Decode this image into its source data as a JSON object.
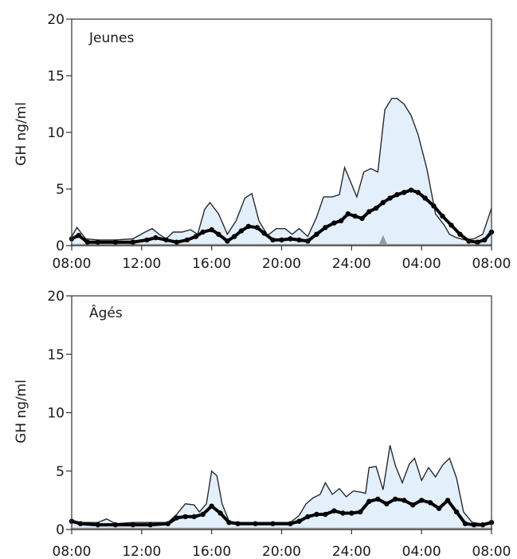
{
  "colors": {
    "band_fill": "#e3f0fb",
    "band_edge": "#2a2a2a",
    "mean_line": "#000000",
    "baseline_fill": "#9a9a9a",
    "axis": "#333333"
  },
  "chart_data": [
    {
      "type": "area",
      "panel_label": "Jeunes",
      "ylabel": "GH ng/ml",
      "ylim": [
        0,
        20
      ],
      "yticks": [
        0,
        5,
        10,
        15,
        20
      ],
      "xlim": [
        8,
        32
      ],
      "xticks": [
        {
          "value": 8,
          "label": "08:00"
        },
        {
          "value": 12,
          "label": "12:00"
        },
        {
          "value": 16,
          "label": "16:00"
        },
        {
          "value": 20,
          "label": "20:00"
        },
        {
          "value": 24,
          "label": "24:00"
        },
        {
          "value": 28,
          "label": "04:00"
        },
        {
          "value": 32,
          "label": "08:00"
        }
      ],
      "series": [
        {
          "role": "upper",
          "x": [
            8,
            8.3,
            8.8,
            9.5,
            10.5,
            11.5,
            12.2,
            12.6,
            13.0,
            13.4,
            13.8,
            14.3,
            14.8,
            15.2,
            15.6,
            15.9,
            16.4,
            16.9,
            17.4,
            17.9,
            18.3,
            18.7,
            19.2,
            19.7,
            20.2,
            20.6,
            21.0,
            21.5,
            22.0,
            22.4,
            22.9,
            23.3,
            23.6,
            23.9,
            24.3,
            24.7,
            25.1,
            25.5,
            25.9,
            26.3,
            26.6,
            27.0,
            27.4,
            27.8,
            28.3,
            28.8,
            29.3,
            29.6,
            30.0,
            30.5,
            31.0,
            31.5,
            32.0
          ],
          "y": [
            0.8,
            1.6,
            0.6,
            0.5,
            0.5,
            0.6,
            1.2,
            1.5,
            1.0,
            0.6,
            1.2,
            1.2,
            1.4,
            1.0,
            3.2,
            3.8,
            2.8,
            1.0,
            2.2,
            4.2,
            4.6,
            2.2,
            0.9,
            1.5,
            1.5,
            1.0,
            1.5,
            0.8,
            2.5,
            4.3,
            4.3,
            4.5,
            6.9,
            5.8,
            4.3,
            6.5,
            6.8,
            6.5,
            12.0,
            13.0,
            13.0,
            12.5,
            11.5,
            9.8,
            6.8,
            2.8,
            1.8,
            1.0,
            0.7,
            0.5,
            0.6,
            1.0,
            3.3
          ]
        },
        {
          "role": "mean",
          "x": [
            8,
            8.4,
            8.9,
            9.5,
            10.5,
            11.5,
            12.3,
            12.8,
            13.4,
            14.0,
            14.6,
            15.1,
            15.5,
            16.0,
            16.4,
            16.9,
            17.3,
            17.7,
            18.1,
            18.6,
            19.0,
            19.5,
            20.0,
            20.5,
            21.0,
            21.5,
            22.0,
            22.5,
            23.0,
            23.4,
            23.8,
            24.2,
            24.6,
            25.0,
            25.4,
            25.8,
            26.2,
            26.6,
            27.0,
            27.4,
            27.8,
            28.2,
            28.7,
            29.2,
            29.7,
            30.2,
            30.7,
            31.2,
            31.6,
            32.0
          ],
          "y": [
            0.6,
            0.9,
            0.3,
            0.3,
            0.3,
            0.3,
            0.5,
            0.7,
            0.5,
            0.3,
            0.5,
            0.8,
            1.2,
            1.4,
            1.0,
            0.4,
            0.8,
            1.3,
            1.7,
            1.6,
            1.1,
            0.5,
            0.5,
            0.6,
            0.5,
            0.4,
            1.0,
            1.6,
            2.0,
            2.2,
            2.8,
            2.6,
            2.4,
            3.0,
            3.3,
            3.8,
            4.2,
            4.5,
            4.7,
            4.9,
            4.7,
            4.2,
            3.5,
            2.6,
            1.8,
            1.0,
            0.4,
            0.3,
            0.5,
            1.2
          ]
        },
        {
          "role": "baseline",
          "x": [
            8,
            25.6,
            25.8,
            26.0,
            32.0
          ],
          "y": [
            0.1,
            0.1,
            0.8,
            0.1,
            0.1
          ]
        }
      ]
    },
    {
      "type": "area",
      "panel_label": "Âgés",
      "ylabel": "GH ng/ml",
      "ylim": [
        0,
        20
      ],
      "yticks": [
        0,
        5,
        10,
        15,
        20
      ],
      "xlim": [
        8,
        32
      ],
      "xticks": [
        {
          "value": 8,
          "label": "08:00"
        },
        {
          "value": 12,
          "label": "12:00"
        },
        {
          "value": 16,
          "label": "16:00"
        },
        {
          "value": 20,
          "label": "20:00"
        },
        {
          "value": 24,
          "label": "24:00"
        },
        {
          "value": 28,
          "label": "04:00"
        },
        {
          "value": 32,
          "label": "08:00"
        }
      ],
      "series": [
        {
          "role": "upper",
          "x": [
            8,
            8.5,
            9.5,
            10.0,
            10.5,
            11.5,
            12.5,
            13.5,
            14.0,
            14.5,
            15.0,
            15.3,
            15.7,
            16.0,
            16.3,
            16.6,
            17.0,
            17.5,
            18.5,
            19.5,
            20.5,
            21.0,
            21.4,
            21.8,
            22.2,
            22.5,
            22.9,
            23.3,
            23.7,
            24.1,
            24.5,
            24.8,
            25.0,
            25.4,
            25.8,
            26.2,
            26.5,
            26.9,
            27.3,
            27.6,
            28.0,
            28.4,
            28.8,
            29.2,
            29.6,
            30.0,
            30.4,
            30.9,
            31.4,
            32.0
          ],
          "y": [
            0.8,
            0.6,
            0.6,
            0.9,
            0.5,
            0.6,
            0.6,
            0.6,
            1.3,
            2.2,
            2.1,
            1.5,
            2.2,
            5.0,
            4.6,
            2.2,
            0.7,
            0.6,
            0.6,
            0.6,
            0.6,
            1.2,
            2.2,
            2.7,
            3.0,
            4.0,
            3.0,
            3.5,
            2.8,
            3.3,
            3.2,
            3.1,
            5.3,
            5.4,
            3.4,
            7.2,
            5.5,
            4.0,
            5.6,
            6.1,
            4.2,
            5.3,
            4.5,
            5.5,
            6.1,
            4.4,
            1.5,
            0.6,
            0.5,
            0.6
          ]
        },
        {
          "role": "mean",
          "x": [
            8,
            8.5,
            9.5,
            10.5,
            11.5,
            12.5,
            13.5,
            14.0,
            14.5,
            15.0,
            15.5,
            16.0,
            16.5,
            17.0,
            17.5,
            18.5,
            19.5,
            20.5,
            21.0,
            21.5,
            22.0,
            22.5,
            23.0,
            23.5,
            24.0,
            24.5,
            25.0,
            25.5,
            26.0,
            26.5,
            27.0,
            27.5,
            28.0,
            28.5,
            29.0,
            29.5,
            30.0,
            30.5,
            31.0,
            31.5,
            32.0
          ],
          "y": [
            0.7,
            0.5,
            0.4,
            0.4,
            0.4,
            0.4,
            0.5,
            1.0,
            1.1,
            1.1,
            1.3,
            2.0,
            1.4,
            0.6,
            0.5,
            0.5,
            0.5,
            0.5,
            0.7,
            1.1,
            1.3,
            1.3,
            1.6,
            1.4,
            1.4,
            1.5,
            2.4,
            2.6,
            2.2,
            2.6,
            2.5,
            2.1,
            2.5,
            2.3,
            1.8,
            2.5,
            1.5,
            0.5,
            0.4,
            0.4,
            0.6
          ]
        },
        {
          "role": "baseline",
          "x": [
            8,
            32
          ],
          "y": [
            0.1,
            0.1
          ]
        }
      ]
    }
  ]
}
